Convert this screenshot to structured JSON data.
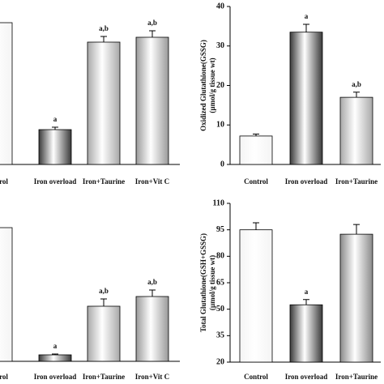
{
  "chart_data": [
    {
      "type": "bar",
      "categories": [
        "Control",
        "Iron overload",
        "Iron+Taurine",
        "Iron+Vit C"
      ],
      "values": [
        175,
        43,
        151,
        157
      ],
      "errors": [
        null,
        3,
        7,
        8
      ],
      "annotations": [
        null,
        "a",
        "a,b",
        "a,b"
      ],
      "colors": [
        "#f4f4f4",
        "#3a3a3a",
        "#a8a8a8",
        "#9a9a9a"
      ],
      "ylim": [
        0,
        200
      ]
    },
    {
      "type": "bar",
      "categories": [
        "Control",
        "Iron overload",
        "Iron+Taurine"
      ],
      "values": [
        7.2,
        33.5,
        17
      ],
      "errors": [
        0.5,
        2,
        1.3
      ],
      "annotations": [
        null,
        "a",
        "a,b"
      ],
      "colors": [
        "#f4f4f4",
        "#3a3a3a",
        "#a8a8a8"
      ],
      "ylabel": [
        "Oxidized Glutathione(GSSG)",
        "(µmol/g tissue wt)"
      ],
      "ylim": [
        0,
        40
      ],
      "yticks": [
        0,
        10,
        20,
        30,
        40
      ]
    },
    {
      "type": "bar",
      "categories": [
        "Control",
        "Iron overload",
        "Iron+Taurine",
        "Iron+Vit C"
      ],
      "values": [
        165,
        8,
        68,
        80
      ],
      "errors": [
        null,
        1,
        9,
        8
      ],
      "annotations": [
        null,
        "a",
        "a,b",
        "a,b"
      ],
      "colors": [
        "#f4f4f4",
        "#3a3a3a",
        "#a8a8a8",
        "#9a9a9a"
      ],
      "ylim": [
        0,
        200
      ]
    },
    {
      "type": "bar",
      "categories": [
        "Control",
        "Iron overload",
        "Iron+Taurine"
      ],
      "values": [
        95,
        52.5,
        92.5
      ],
      "errors": [
        4,
        3,
        5.5
      ],
      "annotations": [
        null,
        "a",
        null
      ],
      "colors": [
        "#f4f4f4",
        "#3a3a3a",
        "#8a8a8a"
      ],
      "ylabel": [
        "Total Glutathione(GSH+GSSG)",
        "(µmol/g tissue wt)"
      ],
      "ylim": [
        20,
        110
      ],
      "yticks": [
        20,
        35,
        50,
        65,
        80,
        95,
        110
      ]
    }
  ]
}
